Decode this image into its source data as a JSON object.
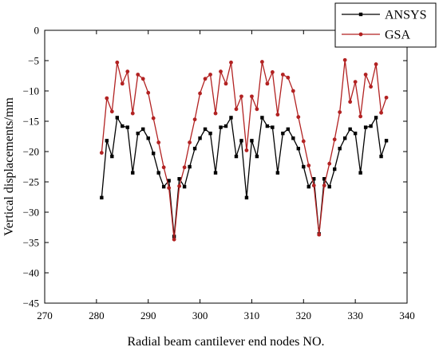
{
  "chart_data": {
    "type": "line",
    "xlabel": "Radial beam cantilever end nodes NO.",
    "ylabel": "Vertical displacements/mm",
    "xlim": [
      270,
      340
    ],
    "ylim": [
      -45,
      0
    ],
    "xticks": [
      270,
      280,
      290,
      300,
      310,
      320,
      330,
      340
    ],
    "yticks": [
      0,
      -5,
      -10,
      -15,
      -20,
      -25,
      -30,
      -35,
      -40,
      -45
    ],
    "xtick_labels": [
      "270",
      "280",
      "290",
      "300",
      "310",
      "320",
      "330",
      "340"
    ],
    "ytick_labels": [
      "0",
      "−5",
      "−10",
      "−15",
      "−20",
      "−25",
      "−30",
      "−35",
      "−40",
      "−45"
    ],
    "legend_position": "top-right",
    "x": [
      281,
      282,
      283,
      284,
      285,
      286,
      287,
      288,
      289,
      290,
      291,
      292,
      293,
      294,
      295,
      296,
      297,
      298,
      299,
      300,
      301,
      302,
      303,
      304,
      305,
      306,
      307,
      308,
      309,
      310,
      311,
      312,
      313,
      314,
      315,
      316,
      317,
      318,
      319,
      320,
      321,
      322,
      323,
      324,
      325,
      326,
      327,
      328,
      329,
      330,
      331,
      332,
      333,
      334,
      335,
      336
    ],
    "series": [
      {
        "name": "ANSYS",
        "color": "#000000",
        "marker": "square",
        "values": [
          -27.6,
          -18.2,
          -20.8,
          -14.4,
          -15.8,
          -16.0,
          -23.5,
          -17.0,
          -16.3,
          -17.8,
          -20.3,
          -23.5,
          -25.8,
          -24.8,
          -34.0,
          -24.5,
          -25.8,
          -22.5,
          -19.5,
          -17.8,
          -16.3,
          -17.0,
          -23.5,
          -16.0,
          -15.8,
          -14.4,
          -20.8,
          -18.2,
          -27.6,
          -18.2,
          -20.8,
          -14.4,
          -15.8,
          -16.0,
          -23.5,
          -17.0,
          -16.3,
          -17.8,
          -19.5,
          -22.5,
          -25.8,
          -24.5,
          -33.6,
          -24.5,
          -25.8,
          -22.9,
          -19.5,
          -17.8,
          -16.3,
          -17.0,
          -23.5,
          -16.0,
          -15.8,
          -14.4,
          -20.8,
          -18.2
        ]
      },
      {
        "name": "GSA",
        "color": "#b22222",
        "marker": "circle",
        "values": [
          -20.2,
          -11.2,
          -13.4,
          -5.3,
          -8.8,
          -6.8,
          -13.7,
          -7.3,
          -8.0,
          -10.3,
          -14.5,
          -18.5,
          -22.6,
          -26.0,
          -34.5,
          -25.7,
          -22.6,
          -18.5,
          -14.7,
          -10.4,
          -8.0,
          -7.3,
          -13.7,
          -6.8,
          -8.8,
          -5.3,
          -13.0,
          -10.9,
          -19.8,
          -10.9,
          -13.0,
          -5.2,
          -8.8,
          -6.9,
          -13.9,
          -7.3,
          -7.8,
          -10.0,
          -14.3,
          -18.3,
          -22.3,
          -25.6,
          -33.7,
          -25.6,
          -22.0,
          -18.0,
          -13.5,
          -4.9,
          -11.8,
          -8.5,
          -14.2,
          -7.3,
          -9.3,
          -5.6,
          -13.6,
          -11.1
        ]
      }
    ]
  }
}
